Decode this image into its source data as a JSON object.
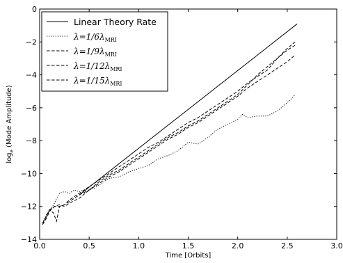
{
  "chart_data": {
    "type": "line",
    "title": "",
    "xlabel": "Time [Orbits]",
    "ylabel": "log",
    "ylabel_subscript": "e",
    "ylabel_rest": " (Mode Amplitude)",
    "xlim": [
      0.0,
      3.0
    ],
    "ylim": [
      -14,
      0
    ],
    "xticks": [
      0.0,
      0.5,
      1.0,
      1.5,
      2.0,
      2.5,
      3.0
    ],
    "xtick_labels": [
      "0.0",
      "0.5",
      "1.0",
      "1.5",
      "2.0",
      "2.5",
      "3.0"
    ],
    "yticks": [
      0,
      -2,
      -4,
      -6,
      -8,
      -10,
      -12,
      -14
    ],
    "ytick_labels": [
      "0",
      "−2",
      "−4",
      "−6",
      "−8",
      "−10",
      "−12",
      "−14"
    ],
    "grid": false,
    "legend_position": "top-left",
    "series": [
      {
        "name": "Linear Theory Rate",
        "style": "solid",
        "x": [
          0.4,
          2.6
        ],
        "y": [
          -11.3,
          -0.9
        ]
      },
      {
        "name": "λ=1/6λ",
        "name_math": "λ=1/6λ",
        "name_sub": "MRI",
        "style": "dotted",
        "x": [
          0.03,
          0.06,
          0.1,
          0.15,
          0.2,
          0.25,
          0.3,
          0.35,
          0.4,
          0.45,
          0.5,
          0.55,
          0.6,
          0.7,
          0.8,
          0.9,
          1.0,
          1.1,
          1.2,
          1.3,
          1.4,
          1.5,
          1.6,
          1.7,
          1.8,
          1.9,
          2.0,
          2.05,
          2.1,
          2.2,
          2.3,
          2.4,
          2.5,
          2.55,
          2.58
        ],
        "y": [
          -13.0,
          -12.6,
          -12.3,
          -11.8,
          -11.2,
          -11.1,
          -11.2,
          -11.0,
          -11.1,
          -11.0,
          -11.0,
          -10.9,
          -10.7,
          -10.3,
          -10.2,
          -9.9,
          -9.7,
          -9.5,
          -9.1,
          -8.9,
          -8.6,
          -8.1,
          -8.2,
          -7.8,
          -7.3,
          -7.0,
          -6.7,
          -6.4,
          -6.6,
          -6.5,
          -6.5,
          -6.2,
          -5.7,
          -5.4,
          -5.2
        ]
      },
      {
        "name": "λ=1/9λ",
        "name_math": "λ=1/9λ",
        "name_sub": "MRI",
        "style": "dashed",
        "x": [
          0.03,
          0.07,
          0.1,
          0.15,
          0.2,
          0.25,
          0.3,
          0.4,
          0.5,
          0.6,
          0.7,
          0.8,
          0.9,
          1.0,
          1.1,
          1.2,
          1.3,
          1.4,
          1.5,
          1.6,
          1.7,
          1.8,
          1.9,
          2.0,
          2.1,
          2.2,
          2.3,
          2.4,
          2.5,
          2.58
        ],
        "y": [
          -13.1,
          -12.7,
          -12.3,
          -12.0,
          -11.9,
          -12.0,
          -11.8,
          -11.5,
          -11.0,
          -10.5,
          -10.1,
          -9.8,
          -9.4,
          -9.0,
          -8.6,
          -8.2,
          -7.8,
          -7.5,
          -7.1,
          -6.8,
          -6.4,
          -6.0,
          -5.6,
          -5.2,
          -4.6,
          -4.0,
          -3.5,
          -3.0,
          -2.5,
          -2.2
        ]
      },
      {
        "name": "λ=1/12λ",
        "name_math": "λ=1/12λ",
        "name_sub": "MRI",
        "style": "dashed",
        "x": [
          0.03,
          0.07,
          0.1,
          0.15,
          0.2,
          0.25,
          0.3,
          0.4,
          0.5,
          0.6,
          0.7,
          0.8,
          0.9,
          1.0,
          1.1,
          1.2,
          1.3,
          1.4,
          1.5,
          1.6,
          1.7,
          1.8,
          1.9,
          2.0,
          2.1,
          2.2,
          2.3,
          2.4,
          2.5,
          2.58
        ],
        "y": [
          -13.0,
          -12.6,
          -12.2,
          -12.0,
          -12.0,
          -11.9,
          -11.7,
          -11.3,
          -11.0,
          -10.6,
          -10.2,
          -9.9,
          -9.5,
          -9.1,
          -8.7,
          -8.3,
          -7.9,
          -7.6,
          -7.2,
          -6.9,
          -6.5,
          -6.1,
          -5.7,
          -5.3,
          -4.8,
          -4.4,
          -4.0,
          -3.6,
          -3.2,
          -2.8
        ]
      },
      {
        "name": "λ=1/15λ",
        "name_math": "λ=1/15λ",
        "name_sub": "MRI",
        "style": "dashed",
        "x": [
          0.03,
          0.07,
          0.1,
          0.14,
          0.17,
          0.2,
          0.25,
          0.3,
          0.4,
          0.5,
          0.6,
          0.7,
          0.8,
          0.9,
          1.0,
          1.1,
          1.2,
          1.3,
          1.4,
          1.5,
          1.6,
          1.7,
          1.8,
          1.9,
          2.0,
          2.1,
          2.2,
          2.3,
          2.4,
          2.5,
          2.58
        ],
        "y": [
          -13.1,
          -12.5,
          -12.2,
          -12.4,
          -12.9,
          -12.0,
          -11.9,
          -11.6,
          -11.2,
          -10.8,
          -10.4,
          -10.0,
          -9.6,
          -9.2,
          -8.8,
          -8.4,
          -8.1,
          -7.7,
          -7.3,
          -6.9,
          -6.6,
          -6.2,
          -5.8,
          -5.4,
          -5.0,
          -4.5,
          -4.1,
          -3.7,
          -3.0,
          -2.4,
          -2.0
        ]
      }
    ]
  }
}
